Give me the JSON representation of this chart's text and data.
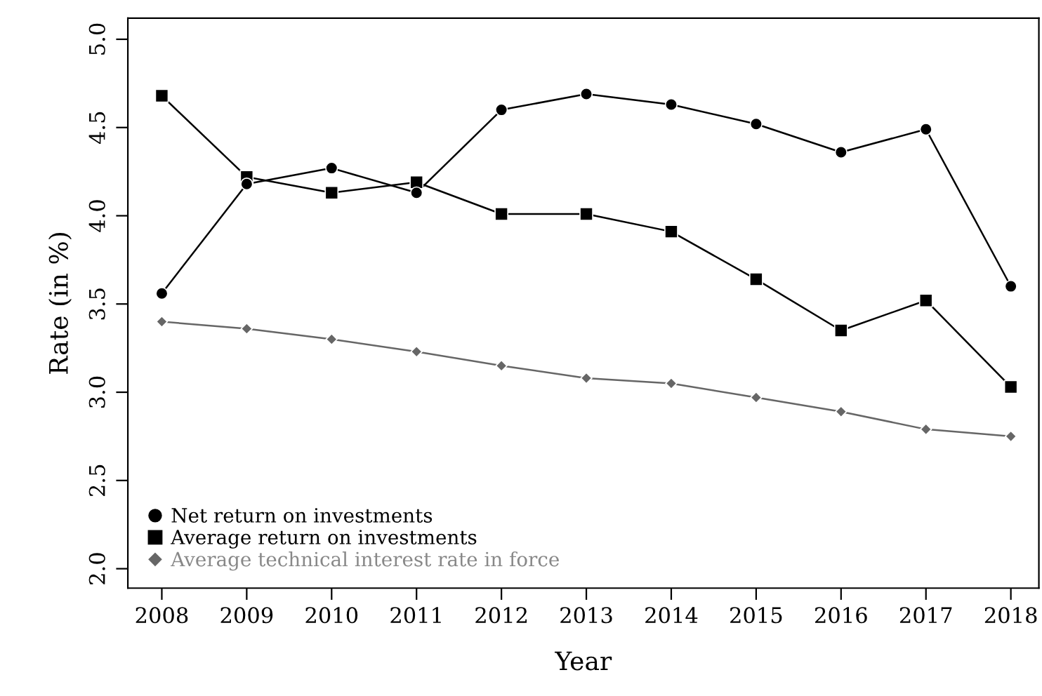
{
  "chart_data": {
    "type": "line",
    "xlabel": "Year",
    "ylabel": "Rate (in %)",
    "x": [
      2008,
      2009,
      2010,
      2011,
      2012,
      2013,
      2014,
      2015,
      2016,
      2017,
      2018
    ],
    "series": [
      {
        "name": "Net return on investments",
        "color": "#000000",
        "marker": "circle",
        "values": [
          3.56,
          4.18,
          4.27,
          4.13,
          4.6,
          4.69,
          4.63,
          4.52,
          4.36,
          4.49,
          3.6
        ]
      },
      {
        "name": "Average return on investments",
        "color": "#000000",
        "marker": "square",
        "values": [
          4.68,
          4.22,
          4.13,
          4.19,
          4.01,
          4.01,
          3.91,
          3.64,
          3.35,
          3.52,
          3.03
        ]
      },
      {
        "name": "Average technical interest rate in force",
        "color": "#666666",
        "marker": "diamond",
        "values": [
          3.4,
          3.36,
          3.3,
          3.23,
          3.15,
          3.08,
          3.05,
          2.97,
          2.89,
          2.79,
          2.75
        ]
      }
    ],
    "xlim": [
      2007.6,
      2018.33
    ],
    "xticks": [
      2008,
      2009,
      2010,
      2011,
      2012,
      2013,
      2014,
      2015,
      2016,
      2017,
      2018
    ],
    "ylim": [
      1.89,
      5.12
    ],
    "yticks": [
      {
        "value": 2,
        "label": "2.0"
      },
      2.5,
      {
        "value": 3,
        "label": "3.0"
      },
      3.5,
      {
        "value": 4,
        "label": "4.0"
      },
      4.5,
      {
        "value": 5,
        "label": "5.0"
      }
    ],
    "grid": false,
    "legend": "bottom left",
    "line_style": "solid"
  }
}
